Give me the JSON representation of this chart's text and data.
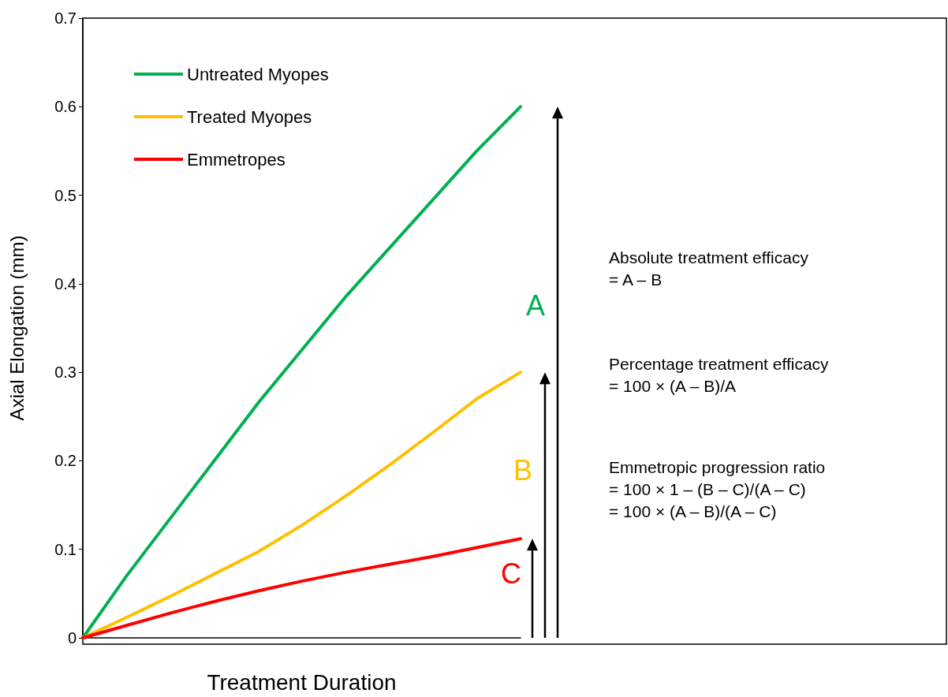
{
  "chart_data": {
    "type": "line",
    "xlabel": "Treatment Duration",
    "ylabel": "Axial Elongation (mm)",
    "categories": [
      null,
      null,
      null,
      null,
      null,
      null,
      null,
      null,
      null,
      null,
      null
    ],
    "series": [
      {
        "name": "Untreated Myopes",
        "color": "#00b050",
        "values": [
          0,
          0.07,
          0.135,
          0.2,
          0.265,
          0.325,
          0.385,
          0.44,
          0.495,
          0.55,
          0.6
        ]
      },
      {
        "name": "Treated Myopes",
        "color": "#ffc000",
        "values": [
          0,
          0.023,
          0.047,
          0.072,
          0.097,
          0.127,
          0.16,
          0.195,
          0.232,
          0.27,
          0.3
        ]
      },
      {
        "name": "Emmetropes",
        "color": "#ff0000",
        "values": [
          0,
          0.014,
          0.028,
          0.041,
          0.053,
          0.064,
          0.074,
          0.083,
          0.092,
          0.102,
          0.112
        ]
      }
    ],
    "ylim": [
      0,
      0.7
    ],
    "yticks": [
      0,
      0.1,
      0.2,
      0.3,
      0.4,
      0.5,
      0.6,
      0.7
    ],
    "legend": "top left",
    "marker": "none",
    "line_style": "solid",
    "annotations": [
      "A",
      "B",
      "C",
      "Absolute treatment efficacy\n= A – B",
      "Percentage treatment efficacy\n= 100 × (A – B)/A",
      "Emmetropic progression ratio\n= 100 × 1 – (B – C)/(A – C)\n= 100 × (A – B)/(A – C)"
    ]
  }
}
